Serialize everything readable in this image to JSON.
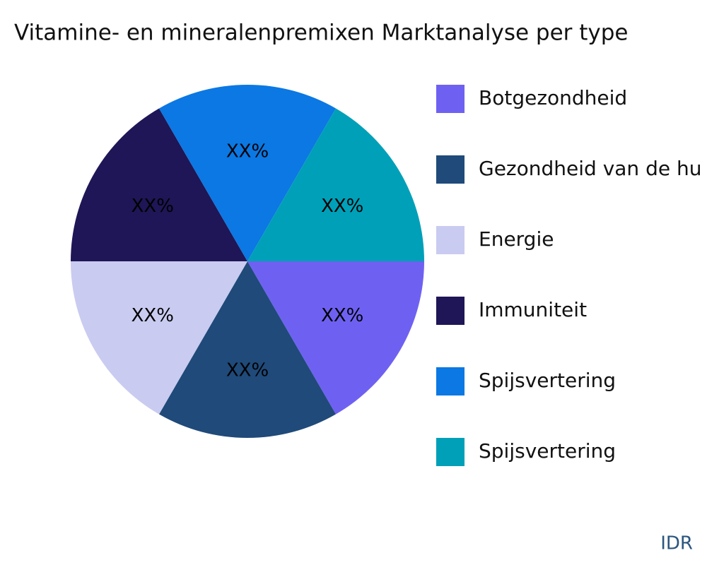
{
  "chart_data": {
    "type": "pie",
    "title": "Vitamine- en mineralenpremixen Marktanalyse per type",
    "categories": [
      "Botgezondheid",
      "Gezondheid van de hu",
      "Energie",
      "Immuniteit",
      "Spijsvertering",
      "Spijsvertering"
    ],
    "values": [
      16.67,
      16.67,
      16.67,
      16.67,
      16.67,
      16.67
    ],
    "value_labels": [
      "XX%",
      "XX%",
      "XX%",
      "XX%",
      "XX%",
      "XX%"
    ],
    "colors": [
      "#6e61f2",
      "#1f4a7a",
      "#c9cbf0",
      "#1e1656",
      "#0b78e3",
      "#00a0b8"
    ],
    "legend": "right",
    "source": "IDR"
  }
}
